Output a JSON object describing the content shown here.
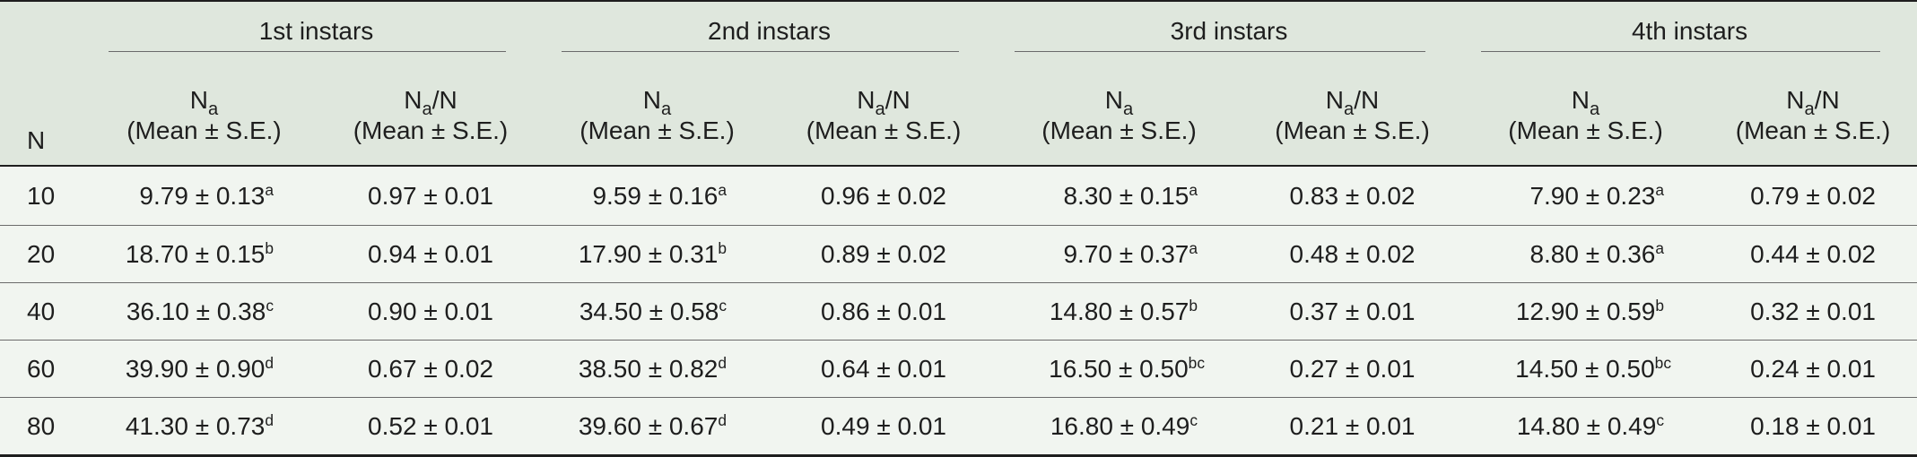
{
  "header": {
    "groups": [
      "1st instars",
      "2nd instars",
      "3rd instars",
      "4th instars"
    ],
    "n_label": "N",
    "mean_label": {
      "sym": "N",
      "sub": "a",
      "stat": "(Mean ± S.E.)"
    },
    "ratio_label": {
      "sym": "N",
      "sub": "a",
      "tail": "/N",
      "stat": "(Mean ± S.E.)"
    }
  },
  "rows": [
    {
      "n": "10",
      "cells": [
        {
          "mean": "9.79 ± 0.13",
          "sup": "a",
          "ratio": "0.97 ± 0.01"
        },
        {
          "mean": "9.59 ± 0.16",
          "sup": "a",
          "ratio": "0.96 ± 0.02"
        },
        {
          "mean": "8.30 ± 0.15",
          "sup": "a",
          "ratio": "0.83 ± 0.02"
        },
        {
          "mean": "7.90 ± 0.23",
          "sup": "a",
          "ratio": "0.79 ± 0.02"
        }
      ]
    },
    {
      "n": "20",
      "cells": [
        {
          "mean": "18.70 ± 0.15",
          "sup": "b",
          "ratio": "0.94 ± 0.01"
        },
        {
          "mean": "17.90 ± 0.31",
          "sup": "b",
          "ratio": "0.89 ± 0.02"
        },
        {
          "mean": "9.70 ± 0.37",
          "sup": "a",
          "ratio": "0.48 ± 0.02"
        },
        {
          "mean": "8.80 ± 0.36",
          "sup": "a",
          "ratio": "0.44 ± 0.02"
        }
      ]
    },
    {
      "n": "40",
      "cells": [
        {
          "mean": "36.10 ± 0.38",
          "sup": "c",
          "ratio": "0.90 ± 0.01"
        },
        {
          "mean": "34.50 ± 0.58",
          "sup": "c",
          "ratio": "0.86 ± 0.01"
        },
        {
          "mean": "14.80 ± 0.57",
          "sup": "b",
          "ratio": "0.37 ± 0.01"
        },
        {
          "mean": "12.90 ± 0.59",
          "sup": "b",
          "ratio": "0.32 ± 0.01"
        }
      ]
    },
    {
      "n": "60",
      "cells": [
        {
          "mean": "39.90 ± 0.90",
          "sup": "d",
          "ratio": "0.67 ± 0.02"
        },
        {
          "mean": "38.50 ± 0.82",
          "sup": "d",
          "ratio": "0.64 ± 0.01"
        },
        {
          "mean": "16.50 ± 0.50",
          "sup": "bc",
          "ratio": "0.27 ± 0.01"
        },
        {
          "mean": "14.50 ± 0.50",
          "sup": "bc",
          "ratio": "0.24 ± 0.01"
        }
      ]
    },
    {
      "n": "80",
      "cells": [
        {
          "mean": "41.30 ± 0.73",
          "sup": "d",
          "ratio": "0.52 ± 0.01"
        },
        {
          "mean": "39.60 ± 0.67",
          "sup": "d",
          "ratio": "0.49 ± 0.01"
        },
        {
          "mean": "16.80 ± 0.49",
          "sup": "c",
          "ratio": "0.21 ± 0.01"
        },
        {
          "mean": "14.80 ± 0.49",
          "sup": "c",
          "ratio": "0.18 ± 0.01"
        }
      ]
    }
  ]
}
